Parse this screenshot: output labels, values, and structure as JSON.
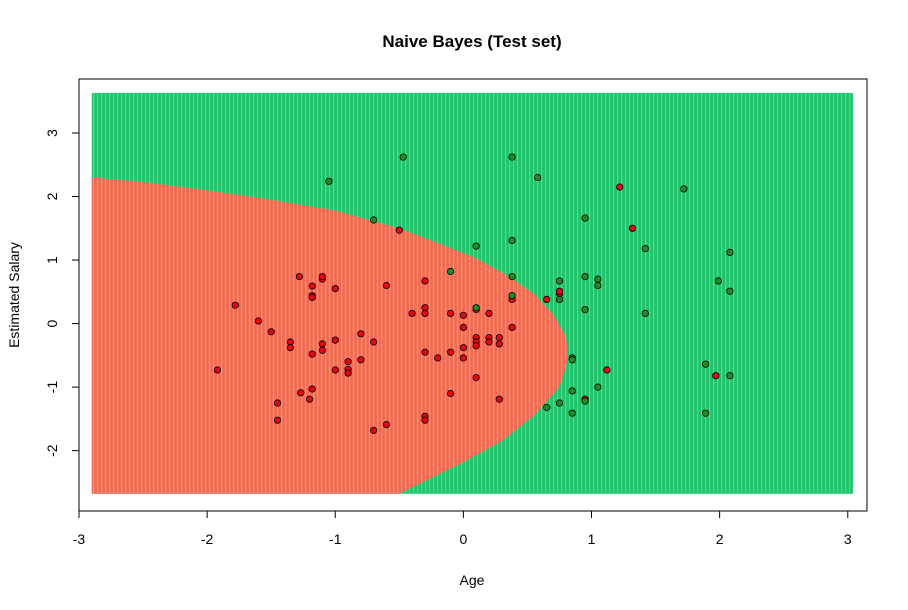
{
  "chart_data": {
    "type": "scatter",
    "title": "Naive Bayes (Test set)",
    "xlabel": "Age",
    "ylabel": "Estimated Salary",
    "xlim": [
      -3.0,
      3.15
    ],
    "ylim": [
      -2.95,
      3.85
    ],
    "x_ticks": [
      -3,
      -2,
      -1,
      0,
      1,
      2,
      3
    ],
    "y_ticks": [
      -2,
      -1,
      0,
      1,
      2,
      3
    ],
    "grid": false,
    "legend": "none",
    "decision_grid": {
      "x_range": [
        -2.9,
        3.04
      ],
      "y_range": [
        -2.68,
        3.63
      ],
      "colors": {
        "class_0": "#f26a4f",
        "class_1": "#1ec46b"
      }
    },
    "decision_boundary_class0_region": [
      [
        -2.9,
        2.3
      ],
      [
        -2.5,
        2.23
      ],
      [
        -2.0,
        2.1
      ],
      [
        -1.5,
        1.95
      ],
      [
        -1.0,
        1.78
      ],
      [
        -0.5,
        1.5
      ],
      [
        -0.2,
        1.27
      ],
      [
        0.1,
        1.03
      ],
      [
        0.35,
        0.75
      ],
      [
        0.55,
        0.47
      ],
      [
        0.7,
        0.15
      ],
      [
        0.8,
        -0.2
      ],
      [
        0.82,
        -0.55
      ],
      [
        0.75,
        -1.0
      ],
      [
        0.55,
        -1.45
      ],
      [
        0.3,
        -1.85
      ],
      [
        0.0,
        -2.18
      ],
      [
        -0.35,
        -2.53
      ],
      [
        -0.5,
        -2.68
      ],
      [
        -2.9,
        -2.68
      ]
    ],
    "colors": {
      "point_class_0": "#e30613",
      "point_class_1": "#1b8f27",
      "point_border": "#000000"
    },
    "series": [
      {
        "class": 0,
        "points": [
          [
            -1.92,
            -0.73
          ],
          [
            -1.78,
            0.29
          ],
          [
            -1.6,
            0.04
          ],
          [
            -1.5,
            -0.13
          ],
          [
            -1.45,
            -1.25
          ],
          [
            -1.45,
            -1.52
          ],
          [
            -1.35,
            -0.29
          ],
          [
            -1.35,
            -0.38
          ],
          [
            -1.28,
            0.74
          ],
          [
            -1.27,
            -1.09
          ],
          [
            -1.2,
            -1.19
          ],
          [
            -1.18,
            0.59
          ],
          [
            -1.18,
            0.44
          ],
          [
            -1.18,
            0.41
          ],
          [
            -1.18,
            -0.48
          ],
          [
            -1.18,
            -1.03
          ],
          [
            -1.1,
            0.7
          ],
          [
            -1.1,
            0.74
          ],
          [
            -1.1,
            -0.32
          ],
          [
            -1.1,
            -0.42
          ],
          [
            -1.0,
            0.55
          ],
          [
            -1.0,
            -0.26
          ],
          [
            -1.0,
            -0.73
          ],
          [
            -0.9,
            -0.6
          ],
          [
            -0.9,
            -0.72
          ],
          [
            -0.9,
            -0.78
          ],
          [
            -0.8,
            -0.16
          ],
          [
            -0.8,
            -0.57
          ],
          [
            -0.7,
            -0.29
          ],
          [
            -0.7,
            -1.68
          ],
          [
            -0.6,
            0.6
          ],
          [
            -0.6,
            -1.59
          ],
          [
            -0.5,
            1.47
          ],
          [
            -0.4,
            0.16
          ],
          [
            -0.3,
            0.67
          ],
          [
            -0.3,
            0.25
          ],
          [
            -0.3,
            0.16
          ],
          [
            -0.3,
            -0.45
          ],
          [
            -0.3,
            -1.46
          ],
          [
            -0.3,
            -1.52
          ],
          [
            -0.2,
            -0.54
          ],
          [
            -0.1,
            0.16
          ],
          [
            -0.1,
            -0.45
          ],
          [
            -0.1,
            -1.1
          ],
          [
            0.0,
            0.13
          ],
          [
            0.0,
            -0.06
          ],
          [
            0.0,
            -0.38
          ],
          [
            0.0,
            -0.54
          ],
          [
            0.1,
            0.22
          ],
          [
            0.1,
            -0.22
          ],
          [
            0.1,
            -0.29
          ],
          [
            0.1,
            -0.35
          ],
          [
            0.1,
            -0.85
          ],
          [
            0.2,
            0.16
          ],
          [
            0.2,
            -0.22
          ],
          [
            0.2,
            -0.29
          ],
          [
            0.28,
            -0.22
          ],
          [
            0.28,
            -0.32
          ],
          [
            0.28,
            -1.19
          ],
          [
            0.38,
            0.38
          ],
          [
            0.38,
            -0.06
          ],
          [
            0.65,
            0.38
          ],
          [
            0.75,
            0.47
          ],
          [
            0.75,
            0.51
          ],
          [
            0.95,
            -1.19
          ],
          [
            1.12,
            -0.73
          ],
          [
            1.22,
            2.15
          ],
          [
            1.32,
            1.5
          ],
          [
            1.97,
            -0.82
          ]
        ]
      },
      {
        "class": 1,
        "points": [
          [
            -1.05,
            2.24
          ],
          [
            -0.47,
            2.62
          ],
          [
            -0.7,
            1.63
          ],
          [
            -0.1,
            0.82
          ],
          [
            0.1,
            0.25
          ],
          [
            0.1,
            1.22
          ],
          [
            0.38,
            2.62
          ],
          [
            0.38,
            1.31
          ],
          [
            0.38,
            0.74
          ],
          [
            0.38,
            0.44
          ],
          [
            0.58,
            2.3
          ],
          [
            0.65,
            -1.32
          ],
          [
            0.75,
            0.67
          ],
          [
            0.75,
            0.38
          ],
          [
            0.75,
            -1.25
          ],
          [
            0.85,
            -0.54
          ],
          [
            0.85,
            -0.57
          ],
          [
            0.85,
            -1.06
          ],
          [
            0.85,
            -1.41
          ],
          [
            0.95,
            1.66
          ],
          [
            0.95,
            0.74
          ],
          [
            0.95,
            0.22
          ],
          [
            0.95,
            -1.22
          ],
          [
            1.05,
            0.7
          ],
          [
            1.05,
            0.6
          ],
          [
            1.05,
            -1.0
          ],
          [
            1.42,
            1.18
          ],
          [
            1.42,
            0.16
          ],
          [
            1.72,
            2.12
          ],
          [
            1.89,
            -0.64
          ],
          [
            1.89,
            -1.41
          ],
          [
            1.99,
            0.67
          ],
          [
            2.08,
            1.12
          ],
          [
            2.08,
            0.51
          ],
          [
            2.08,
            -0.82
          ]
        ]
      }
    ]
  }
}
